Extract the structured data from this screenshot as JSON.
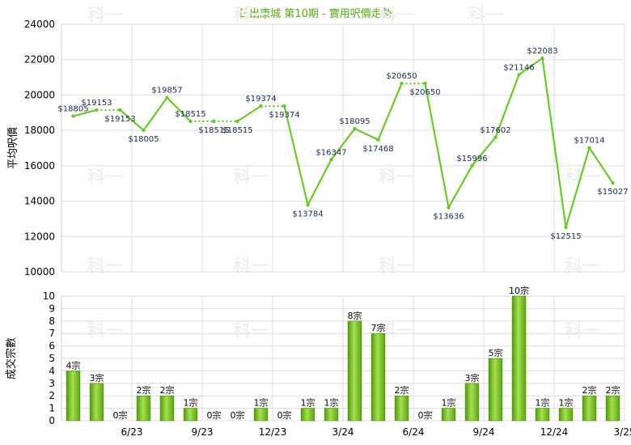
{
  "chart_data": [
    {
      "type": "line",
      "title": "日出康城 第10期 - 實用呎價走勢",
      "ylabel": "平均呎價",
      "ylim": [
        10000,
        24000
      ],
      "yticks": [
        10000,
        12000,
        14000,
        16000,
        18000,
        20000,
        22000,
        24000
      ],
      "grid": true,
      "watermark": "科一",
      "line_color": "#66cc22",
      "points": [
        {
          "label": "$18805",
          "value": 18805
        },
        {
          "label": "$19153",
          "value": 19153
        },
        {
          "label": "$19153",
          "value": 19153
        },
        {
          "label": "$18005",
          "value": 18005
        },
        {
          "label": "$19857",
          "value": 19857
        },
        {
          "label": "$18515",
          "value": 18515
        },
        {
          "label": "$18515",
          "value": 18515
        },
        {
          "label": "$18515",
          "value": 18515
        },
        {
          "label": "$19374",
          "value": 19374
        },
        {
          "label": "$19374",
          "value": 19374
        },
        {
          "label": "$13784",
          "value": 13784
        },
        {
          "label": "$16347",
          "value": 16347
        },
        {
          "label": "$18095",
          "value": 18095
        },
        {
          "label": "$17468",
          "value": 17468
        },
        {
          "label": "$20650",
          "value": 20650
        },
        {
          "label": "$20650",
          "value": 20650
        },
        {
          "label": "$13636",
          "value": 13636
        },
        {
          "label": "$15996",
          "value": 15996
        },
        {
          "label": "$17602",
          "value": 17602
        },
        {
          "label": "$21146",
          "value": 21146
        },
        {
          "label": "$22083",
          "value": 22083
        },
        {
          "label": "$12515",
          "value": 12515
        },
        {
          "label": "$17014",
          "value": 17014
        },
        {
          "label": "$15027",
          "value": 15027
        }
      ],
      "dotted_segments": [
        [
          1,
          2
        ],
        [
          5,
          7
        ],
        [
          8,
          9
        ],
        [
          14,
          15
        ]
      ]
    },
    {
      "type": "bar",
      "ylabel": "成交宗數",
      "ylim": [
        0,
        10
      ],
      "yticks": [
        0,
        1,
        2,
        3,
        4,
        5,
        6,
        7,
        8,
        9,
        10
      ],
      "grid": true,
      "bar_color": "#77bb22",
      "x_tick_labels": [
        {
          "index": 2,
          "label": "6/23"
        },
        {
          "index": 5,
          "label": "9/23"
        },
        {
          "index": 8,
          "label": "12/23"
        },
        {
          "index": 11,
          "label": "3/24"
        },
        {
          "index": 14,
          "label": "6/24"
        },
        {
          "index": 17,
          "label": "9/24"
        },
        {
          "index": 20,
          "label": "12/24"
        },
        {
          "index": 23,
          "label": "3/25"
        }
      ],
      "values": [
        4,
        3,
        0,
        2,
        2,
        1,
        0,
        0,
        1,
        0,
        1,
        1,
        8,
        7,
        2,
        0,
        1,
        3,
        5,
        10,
        1,
        1,
        2,
        2
      ],
      "bar_labels": [
        "4宗",
        "3宗",
        "0宗",
        "2宗",
        "2宗",
        "1宗",
        "0宗",
        "0宗",
        "1宗",
        "0宗",
        "1宗",
        "1宗",
        "8宗",
        "7宗",
        "2宗",
        "0宗",
        "1宗",
        "3宗",
        "5宗",
        "10宗",
        "1宗",
        "1宗",
        "2宗",
        "2宗"
      ]
    }
  ]
}
